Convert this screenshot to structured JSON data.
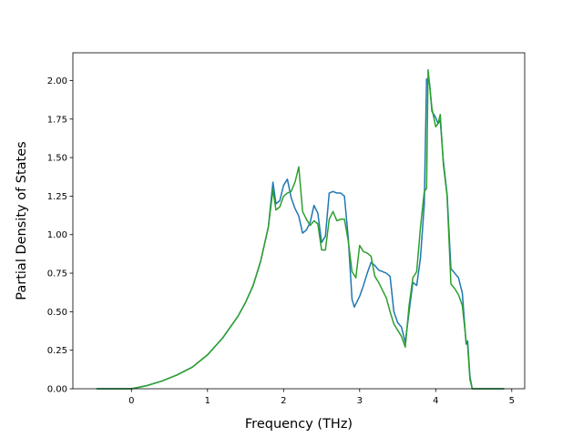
{
  "chart_data": {
    "type": "line",
    "title": "",
    "xlabel": "Frequency (THz)",
    "ylabel": "Partial Density of States",
    "xlim": [
      -0.77,
      5.17
    ],
    "ylim": [
      0.0,
      2.18
    ],
    "xticks": [
      0,
      1,
      2,
      3,
      4,
      5
    ],
    "yticks": [
      0.0,
      0.25,
      0.5,
      0.75,
      1.0,
      1.25,
      1.5,
      1.75,
      2.0
    ],
    "xtick_labels": [
      "0",
      "1",
      "2",
      "3",
      "4",
      "5"
    ],
    "ytick_labels": [
      "0.00",
      "0.25",
      "0.50",
      "0.75",
      "1.00",
      "1.25",
      "1.50",
      "1.75",
      "2.00"
    ],
    "grid": false,
    "legend": "none",
    "series": [
      {
        "color": "#1f77b4",
        "x": [
          -0.46,
          0,
          0.2,
          0.4,
          0.6,
          0.8,
          1.0,
          1.2,
          1.4,
          1.5,
          1.6,
          1.7,
          1.75,
          1.8,
          1.86,
          1.9,
          1.95,
          2.0,
          2.05,
          2.1,
          2.15,
          2.2,
          2.25,
          2.3,
          2.35,
          2.4,
          2.45,
          2.5,
          2.55,
          2.6,
          2.65,
          2.7,
          2.75,
          2.8,
          2.85,
          2.9,
          2.93,
          2.95,
          3.0,
          3.05,
          3.1,
          3.15,
          3.2,
          3.25,
          3.3,
          3.35,
          3.4,
          3.45,
          3.5,
          3.55,
          3.6,
          3.65,
          3.7,
          3.75,
          3.8,
          3.85,
          3.88,
          3.92,
          3.95,
          4.0,
          4.03,
          4.06,
          4.1,
          4.15,
          4.2,
          4.25,
          4.3,
          4.35,
          4.4,
          4.42,
          4.45,
          4.48,
          4.55,
          4.9
        ],
        "y": [
          0.0,
          0.0,
          0.02,
          0.05,
          0.09,
          0.14,
          0.22,
          0.33,
          0.47,
          0.56,
          0.67,
          0.83,
          0.94,
          1.05,
          1.34,
          1.2,
          1.22,
          1.32,
          1.36,
          1.24,
          1.17,
          1.12,
          1.01,
          1.03,
          1.08,
          1.19,
          1.14,
          0.95,
          0.99,
          1.27,
          1.28,
          1.27,
          1.27,
          1.25,
          0.98,
          0.58,
          0.53,
          0.55,
          0.6,
          0.67,
          0.75,
          0.82,
          0.8,
          0.77,
          0.76,
          0.75,
          0.73,
          0.5,
          0.43,
          0.4,
          0.3,
          0.5,
          0.69,
          0.67,
          0.85,
          1.2,
          2.01,
          1.98,
          1.8,
          1.76,
          1.72,
          1.74,
          1.48,
          1.26,
          0.78,
          0.75,
          0.72,
          0.62,
          0.29,
          0.31,
          0.08,
          0.0,
          0.0,
          0.0
        ]
      },
      {
        "color": "#2ca02c",
        "x": [
          -0.46,
          0,
          0.2,
          0.4,
          0.6,
          0.8,
          1.0,
          1.2,
          1.4,
          1.5,
          1.6,
          1.7,
          1.75,
          1.8,
          1.86,
          1.9,
          1.95,
          2.0,
          2.05,
          2.1,
          2.15,
          2.2,
          2.25,
          2.3,
          2.35,
          2.4,
          2.45,
          2.5,
          2.55,
          2.6,
          2.65,
          2.7,
          2.75,
          2.8,
          2.85,
          2.9,
          2.95,
          3.0,
          3.05,
          3.1,
          3.15,
          3.2,
          3.25,
          3.3,
          3.35,
          3.4,
          3.45,
          3.5,
          3.55,
          3.6,
          3.65,
          3.7,
          3.75,
          3.8,
          3.85,
          3.88,
          3.9,
          3.95,
          4.0,
          4.03,
          4.06,
          4.1,
          4.15,
          4.2,
          4.25,
          4.3,
          4.35,
          4.4,
          4.42,
          4.45,
          4.48,
          4.55,
          4.9
        ],
        "y": [
          0.0,
          0.0,
          0.02,
          0.05,
          0.09,
          0.14,
          0.22,
          0.33,
          0.47,
          0.56,
          0.67,
          0.83,
          0.94,
          1.05,
          1.29,
          1.16,
          1.18,
          1.25,
          1.27,
          1.28,
          1.34,
          1.44,
          1.15,
          1.1,
          1.06,
          1.09,
          1.07,
          0.9,
          0.9,
          1.1,
          1.15,
          1.09,
          1.1,
          1.1,
          0.96,
          0.76,
          0.72,
          0.93,
          0.89,
          0.88,
          0.86,
          0.73,
          0.69,
          0.64,
          0.59,
          0.5,
          0.42,
          0.38,
          0.34,
          0.27,
          0.54,
          0.72,
          0.76,
          1.05,
          1.28,
          1.3,
          2.07,
          1.82,
          1.7,
          1.72,
          1.78,
          1.46,
          1.25,
          0.68,
          0.65,
          0.61,
          0.54,
          0.31,
          0.28,
          0.06,
          0.0,
          0.0,
          0.0
        ]
      }
    ]
  }
}
